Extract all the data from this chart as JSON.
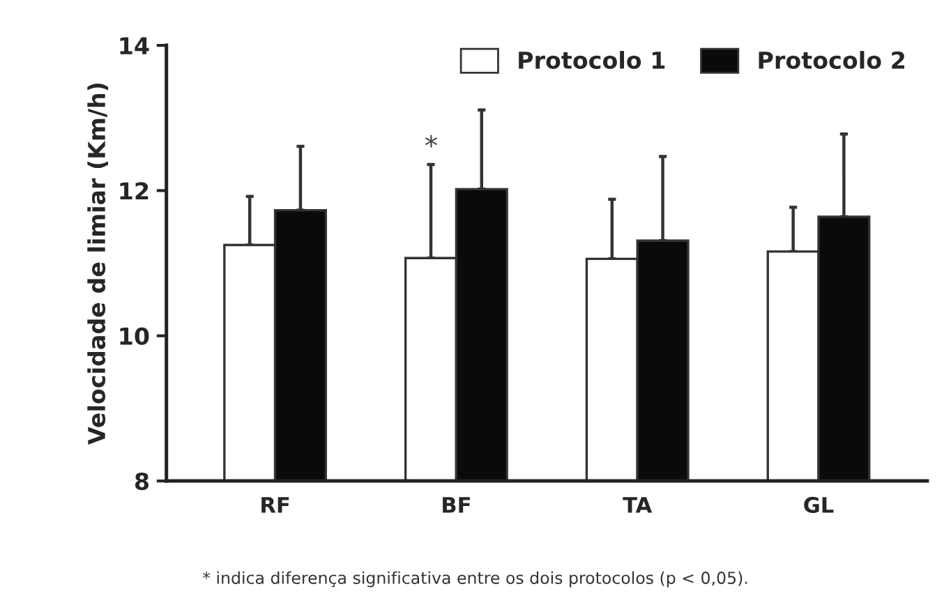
{
  "chart_data": {
    "type": "bar",
    "ylabel": "Velocidade de limiar (Km/h)",
    "categories": [
      "RF",
      "BF",
      "TA",
      "GL"
    ],
    "series": [
      {
        "name": "Protocolo 1",
        "color": "#ffffff",
        "values": [
          11.25,
          11.07,
          11.06,
          11.16
        ],
        "errors": [
          [
            11.25,
            11.92
          ],
          [
            11.07,
            12.36
          ],
          [
            11.06,
            11.88
          ],
          [
            11.16,
            11.77
          ]
        ]
      },
      {
        "name": "Protocolo 2",
        "color": "#0a0a0a",
        "values": [
          11.73,
          12.02,
          11.31,
          11.64
        ],
        "errors": [
          [
            11.73,
            12.61
          ],
          [
            12.02,
            13.11
          ],
          [
            11.31,
            12.47
          ],
          [
            11.64,
            12.78
          ]
        ]
      }
    ],
    "ylim": [
      8,
      14
    ],
    "yticks": [
      8,
      10,
      12,
      14
    ],
    "grid": false,
    "legend": "top right",
    "annotations": [
      "*",
      "* indica diferença significativa entre os dois protocolos (p < 0,05)."
    ]
  }
}
